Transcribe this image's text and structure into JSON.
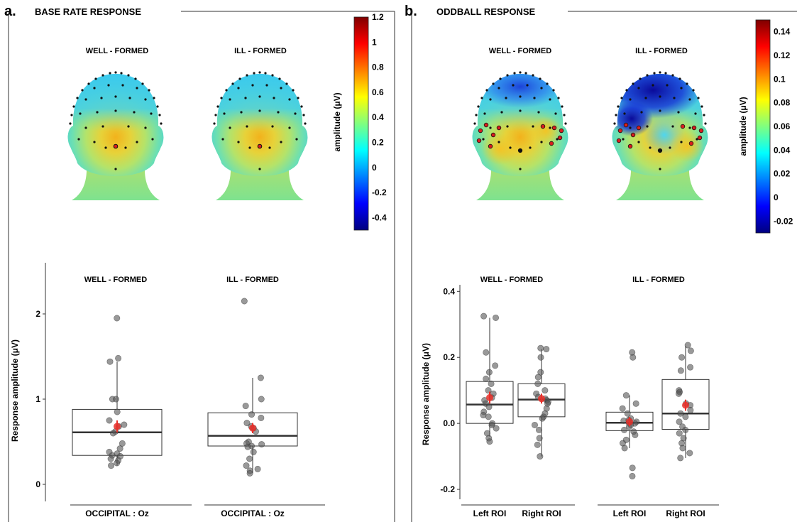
{
  "panels": {
    "a": {
      "letter": "a.",
      "title": "BASE RATE RESPONSE",
      "topo_labels": [
        "WELL - FORMED",
        "ILL - FORMED"
      ],
      "colorbar": {
        "label": "amplitude (μV)",
        "ticks": [
          "1.2",
          "1",
          "0.8",
          "0.6",
          "0.4",
          "0.2",
          "0",
          "-0.2",
          "-0.4"
        ],
        "min": -0.5,
        "max": 1.2
      },
      "box_labels": [
        "WELL - FORMED",
        "ILL - FORMED"
      ],
      "ylabel": "Response amplitude (μV)",
      "group_labels": [
        "OCCIPITAL : Oz",
        "OCCIPITAL : Oz"
      ]
    },
    "b": {
      "letter": "b.",
      "title": "ODDBALL RESPONSE",
      "topo_labels": [
        "WELL - FORMED",
        "ILL - FORMED"
      ],
      "colorbar": {
        "label": "amplitude (μV)",
        "ticks": [
          "0.14",
          "0.12",
          "0.1",
          "0.08",
          "0.06",
          "0.04",
          "0.02",
          "0",
          "-0.02"
        ],
        "min": -0.03,
        "max": 0.15
      },
      "box_labels": [
        "WELL - FORMED",
        "ILL - FORMED"
      ],
      "ylabel": "Response amplitude (μV)",
      "roi_labels": [
        "Left ROI",
        "Right ROI",
        "Left ROI",
        "Right ROI"
      ]
    }
  },
  "colors": {
    "point": "#555555",
    "mean": "#e8302a",
    "box": "#333333",
    "highlight": "#d81e1e"
  },
  "chart_data": [
    {
      "type": "box",
      "panel": "a",
      "ylabel": "Response amplitude (μV)",
      "ylim": [
        -0.2,
        2.6
      ],
      "yticks": [
        0,
        1,
        2
      ],
      "groups": [
        {
          "label": "OCCIPITAL : Oz",
          "condition": "WELL - FORMED",
          "q1": 0.34,
          "median": 0.61,
          "q3": 0.88,
          "whisker_low": 0.22,
          "whisker_high": 1.44,
          "mean": 0.68,
          "mean_se": 0.07,
          "points": [
            1.95,
            1.48,
            1.44,
            1.0,
            1.0,
            0.85,
            0.75,
            0.7,
            0.68,
            0.62,
            0.6,
            0.48,
            0.42,
            0.38,
            0.36,
            0.34,
            0.33,
            0.3,
            0.28,
            0.25,
            0.22
          ]
        },
        {
          "label": "OCCIPITAL : Oz",
          "condition": "ILL - FORMED",
          "q1": 0.45,
          "median": 0.57,
          "q3": 0.84,
          "whisker_low": 0.13,
          "whisker_high": 1.25,
          "mean": 0.66,
          "mean_se": 0.06,
          "points": [
            2.15,
            1.25,
            1.0,
            0.92,
            0.82,
            0.78,
            0.72,
            0.68,
            0.66,
            0.62,
            0.5,
            0.48,
            0.47,
            0.45,
            0.44,
            0.38,
            0.3,
            0.22,
            0.18,
            0.16,
            0.13
          ]
        }
      ]
    },
    {
      "type": "box",
      "panel": "b",
      "ylabel": "Response amplitude (μV)",
      "ylim": [
        -0.23,
        0.42
      ],
      "yticks": [
        -0.2,
        0.0,
        0.2,
        0.4
      ],
      "groups": [
        {
          "label": "Left ROI",
          "condition": "WELL - FORMED",
          "q1": 0.0,
          "median": 0.057,
          "q3": 0.127,
          "whisker_low": -0.04,
          "whisker_high": 0.32,
          "mean": 0.078,
          "mean_se": 0.018,
          "points": [
            0.325,
            0.32,
            0.215,
            0.175,
            0.155,
            0.135,
            0.12,
            0.1,
            0.09,
            0.078,
            0.07,
            0.06,
            0.05,
            0.035,
            0.025,
            0.02,
            0.0,
            -0.005,
            -0.015,
            -0.03,
            -0.045,
            -0.055
          ]
        },
        {
          "label": "Right ROI",
          "condition": "WELL - FORMED",
          "q1": 0.02,
          "median": 0.072,
          "q3": 0.12,
          "whisker_low": -0.1,
          "whisker_high": 0.225,
          "mean": 0.075,
          "mean_se": 0.015,
          "points": [
            0.228,
            0.225,
            0.2,
            0.155,
            0.14,
            0.12,
            0.1,
            0.09,
            0.08,
            0.075,
            0.07,
            0.065,
            0.06,
            0.045,
            0.03,
            0.02,
            0.015,
            -0.005,
            -0.02,
            -0.045,
            -0.065,
            -0.1
          ]
        },
        {
          "label": "Left ROI",
          "condition": "ILL - FORMED",
          "q1": -0.022,
          "median": 0.002,
          "q3": 0.034,
          "whisker_low": -0.075,
          "whisker_high": 0.085,
          "mean": 0.005,
          "mean_se": 0.014,
          "points": [
            0.215,
            0.2,
            0.085,
            0.06,
            0.045,
            0.03,
            0.015,
            0.01,
            0.008,
            0.005,
            0.002,
            0.0,
            -0.005,
            -0.01,
            -0.02,
            -0.025,
            -0.035,
            -0.05,
            -0.06,
            -0.075,
            -0.135,
            -0.16
          ]
        },
        {
          "label": "Right ROI",
          "condition": "ILL - FORMED",
          "q1": -0.018,
          "median": 0.03,
          "q3": 0.133,
          "whisker_low": -0.105,
          "whisker_high": 0.235,
          "mean": 0.055,
          "mean_se": 0.017,
          "points": [
            0.237,
            0.22,
            0.2,
            0.17,
            0.16,
            0.1,
            0.095,
            0.09,
            0.06,
            0.055,
            0.04,
            0.03,
            0.02,
            0.005,
            -0.01,
            -0.02,
            -0.03,
            -0.045,
            -0.06,
            -0.075,
            -0.09,
            -0.105
          ]
        }
      ]
    }
  ]
}
